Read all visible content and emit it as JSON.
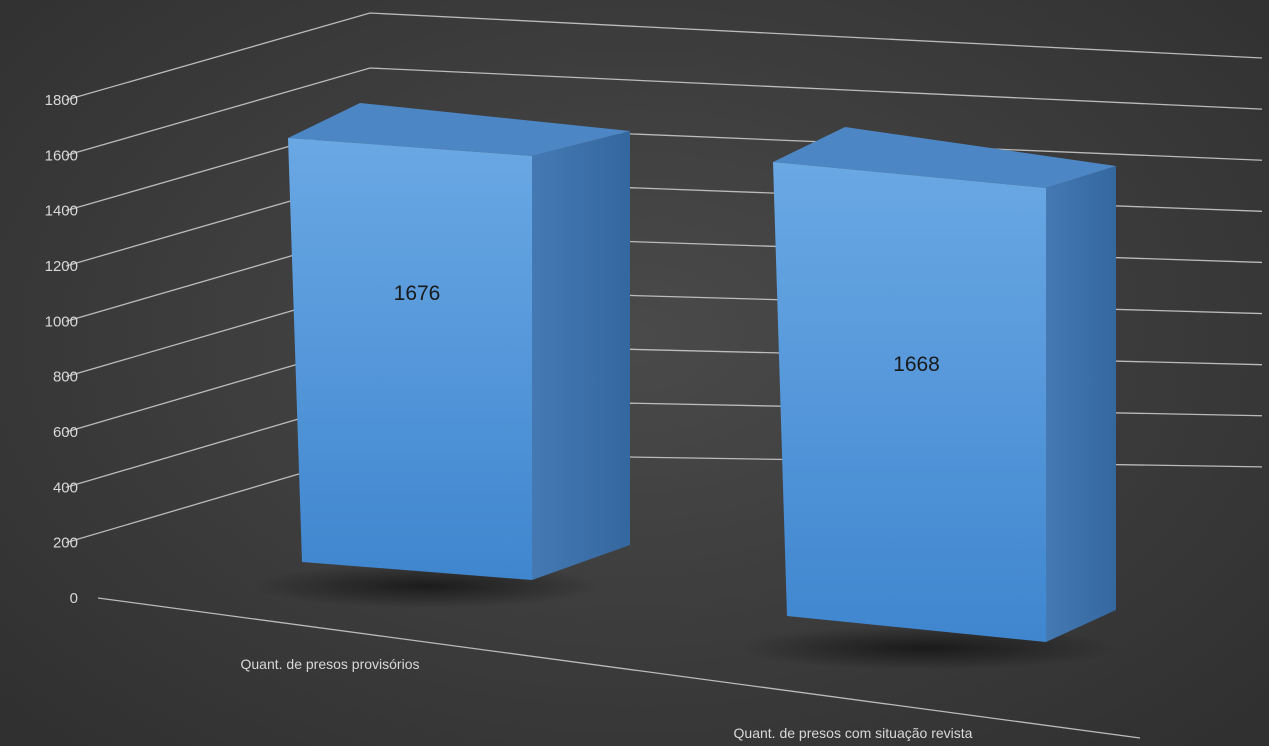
{
  "chart_data": {
    "type": "bar",
    "title": "",
    "xlabel": "",
    "ylabel": "",
    "categories": [
      "Quant. de presos provisórios",
      "Quant. de presos com situação revista"
    ],
    "values": [
      1676,
      1668
    ],
    "ylim": [
      0,
      1800
    ],
    "yticks": [
      0,
      200,
      400,
      600,
      800,
      1000,
      1200,
      1400,
      1600,
      1800
    ],
    "ytick_labels": [
      "0",
      "200",
      "400",
      "600",
      "800",
      "1000",
      "1200",
      "1400",
      "1600",
      "1800"
    ],
    "data_labels": [
      "1676",
      "1668"
    ],
    "grid": true,
    "style": "3d-column",
    "colors": {
      "background": "#3b3b3b",
      "bar_front": "#5b9ad9",
      "bar_side": "#3f73ad",
      "bar_top": "#4d86c4",
      "gridline": "#c9c9c9",
      "text": "#d8d8d8",
      "data_label": "#1a1a1a"
    }
  }
}
